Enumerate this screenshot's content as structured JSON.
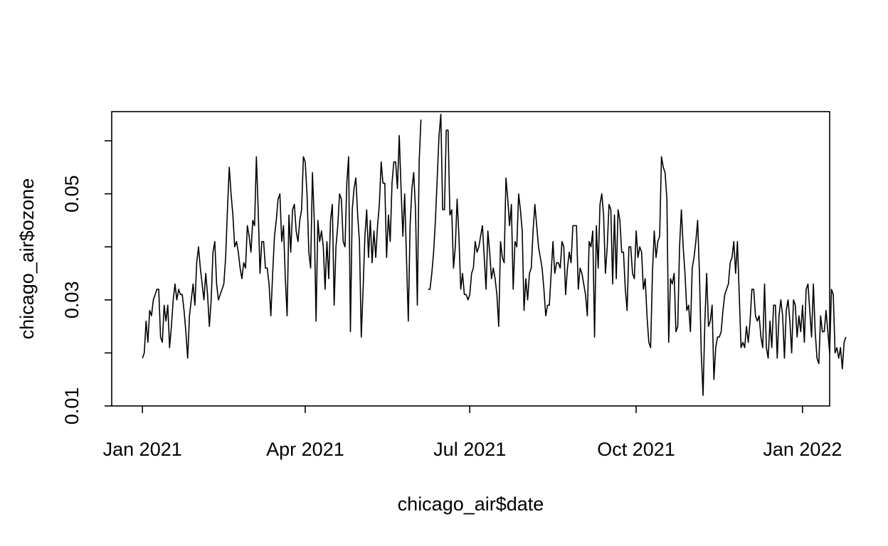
{
  "chart_data": {
    "type": "line",
    "xlabel": "chicago_air$date",
    "ylabel": "chicago_air$ozone",
    "xlim": [
      "2020-12-15",
      "2022-01-16"
    ],
    "ylim": [
      0.01,
      0.0655
    ],
    "x_ticks": [
      "2021-01-01",
      "2021-04-01",
      "2021-07-01",
      "2021-10-01",
      "2022-01-01"
    ],
    "x_tick_labels": [
      "Jan 2021",
      "Apr 2021",
      "Jul 2021",
      "Oct 2021",
      "Jan 2022"
    ],
    "y_ticks": [
      0.01,
      0.02,
      0.03,
      0.04,
      0.05,
      0.06
    ],
    "y_tick_labels": [
      "0.01",
      "",
      "0.03",
      "",
      "0.05",
      ""
    ],
    "grid": false,
    "series": [
      {
        "start_date": "2021-01-01",
        "values": [
          0.019,
          0.02,
          0.026,
          0.022,
          0.028,
          0.027,
          0.03,
          0.031,
          0.032,
          0.032,
          0.023,
          0.022,
          0.029,
          0.026,
          0.029,
          0.021,
          0.025,
          0.03,
          0.033,
          0.03,
          0.032,
          0.031,
          0.031,
          0.028,
          0.024,
          0.019,
          0.027,
          0.03,
          0.033,
          0.029,
          0.037,
          0.04,
          0.036,
          0.033,
          0.03,
          0.035,
          0.031,
          0.025,
          0.03,
          0.039,
          0.041,
          0.033,
          0.03,
          0.031,
          0.032,
          0.033,
          0.038,
          0.047,
          0.055,
          0.05,
          0.046,
          0.04,
          0.041,
          0.039,
          0.036,
          0.034,
          0.037,
          0.036,
          0.044,
          0.042,
          0.039,
          0.045,
          0.044,
          0.057,
          0.047,
          0.035,
          0.041,
          0.041,
          0.036,
          0.036,
          0.033,
          0.027,
          0.035,
          0.042,
          0.045,
          0.049,
          0.05,
          0.041,
          0.044,
          0.034,
          0.027,
          0.046,
          0.039,
          0.047,
          0.048,
          0.043,
          0.041,
          0.045,
          0.047,
          0.057,
          0.056,
          0.05,
          0.039,
          0.036,
          0.054,
          0.045,
          0.026,
          0.045,
          0.041,
          0.043,
          0.04,
          0.032,
          0.041,
          0.034,
          0.045,
          0.048,
          0.029,
          0.04,
          0.044,
          0.05,
          0.049,
          0.041,
          0.04,
          0.052,
          0.057,
          0.024,
          0.047,
          0.051,
          0.053,
          0.046,
          0.041,
          0.023,
          0.032,
          0.042,
          0.047,
          0.038,
          0.045,
          0.037,
          0.043,
          0.038,
          0.044,
          0.048,
          0.056,
          0.052,
          0.052,
          0.038,
          0.046,
          0.041,
          0.052,
          0.056,
          0.056,
          0.051,
          0.061,
          0.051,
          0.042,
          0.05,
          0.038,
          0.026,
          0.044,
          0.051,
          0.054,
          0.047,
          0.029,
          0.056,
          0.064,
          null,
          null,
          null,
          0.032,
          0.032,
          0.035,
          0.039,
          0.045,
          0.053,
          0.061,
          0.065,
          0.047,
          0.047,
          0.062,
          0.062,
          0.046,
          0.047,
          0.036,
          0.04,
          0.049,
          0.042,
          0.032,
          0.035,
          0.031,
          0.031,
          0.03,
          0.031,
          0.035,
          0.036,
          0.041,
          0.039,
          0.04,
          0.042,
          0.044,
          0.038,
          0.032,
          0.043,
          0.039,
          0.034,
          0.036,
          0.034,
          0.031,
          0.025,
          0.041,
          0.038,
          0.037,
          0.053,
          0.049,
          0.044,
          0.048,
          0.032,
          0.041,
          0.04,
          0.05,
          0.047,
          0.043,
          0.028,
          0.034,
          0.03,
          0.035,
          0.036,
          0.043,
          0.048,
          0.044,
          0.04,
          0.038,
          0.036,
          0.032,
          0.027,
          0.029,
          0.029,
          0.035,
          0.041,
          0.035,
          0.037,
          0.037,
          0.036,
          0.041,
          0.04,
          0.031,
          0.036,
          0.039,
          0.037,
          0.044,
          0.044,
          0.044,
          0.032,
          0.036,
          0.035,
          0.033,
          0.031,
          0.027,
          0.041,
          0.04,
          0.043,
          0.023,
          0.044,
          0.036,
          0.048,
          0.05,
          0.046,
          0.035,
          0.04,
          0.048,
          0.047,
          0.033,
          0.046,
          0.034,
          0.047,
          0.045,
          0.039,
          0.039,
          0.032,
          0.028,
          0.04,
          0.04,
          0.035,
          0.034,
          0.043,
          0.038,
          0.04,
          0.039,
          0.032,
          0.034,
          0.027,
          0.022,
          0.021,
          0.035,
          0.043,
          0.038,
          0.041,
          0.042,
          0.057,
          0.055,
          0.054,
          0.049,
          0.022,
          0.034,
          0.033,
          0.035,
          0.024,
          0.025,
          0.04,
          0.047,
          0.04,
          0.035,
          0.028,
          0.029,
          0.024,
          0.036,
          0.038,
          0.041,
          0.045,
          0.035,
          0.02,
          0.012,
          0.026,
          0.035,
          0.025,
          0.026,
          0.029,
          0.015,
          0.021,
          0.023,
          0.023,
          0.024,
          0.028,
          0.031,
          0.032,
          0.033,
          0.037,
          0.038,
          0.041,
          0.035,
          0.041,
          0.031,
          0.021,
          0.022,
          0.021,
          0.025,
          0.022,
          0.026,
          0.032,
          0.032,
          0.027,
          0.026,
          0.027,
          0.023,
          0.021,
          0.033,
          0.021,
          0.019,
          0.026,
          0.021,
          0.029,
          0.029,
          0.019,
          0.027,
          0.03,
          0.027,
          0.019,
          0.028,
          0.03,
          0.026,
          0.02,
          0.03,
          0.029,
          0.023,
          0.027,
          0.024,
          0.029,
          0.022,
          0.032,
          0.033,
          0.028,
          0.023,
          0.033,
          0.024,
          0.019,
          0.018,
          0.027,
          0.024,
          0.024,
          0.028,
          0.024,
          0.02,
          0.032,
          0.031,
          0.02,
          0.021,
          0.019,
          0.021,
          0.017,
          0.022,
          0.023
        ]
      }
    ]
  }
}
